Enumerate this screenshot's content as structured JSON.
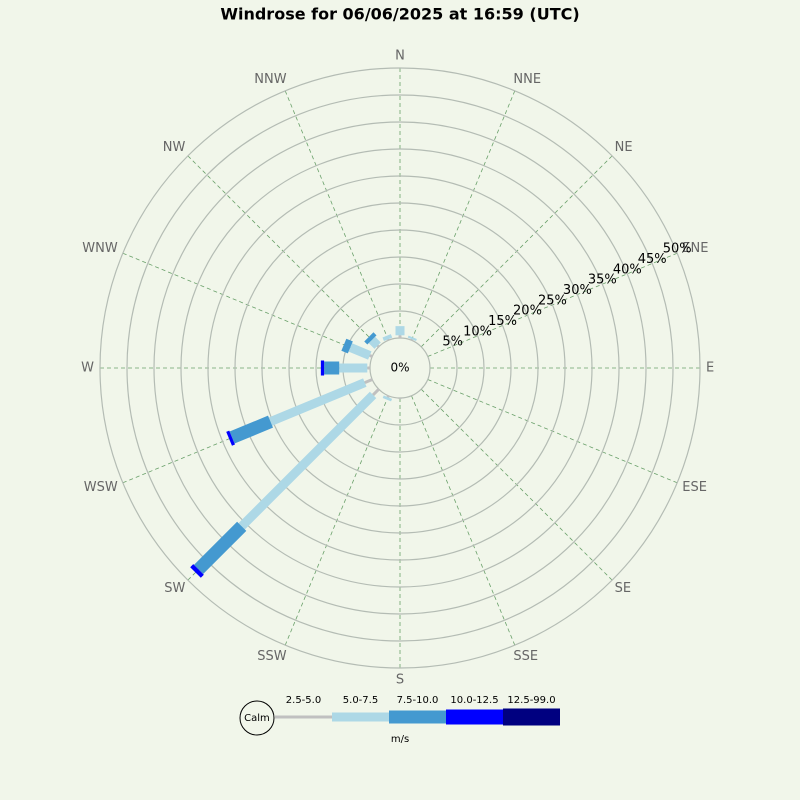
{
  "chart_data": {
    "type": "windrose",
    "title": "Windrose for 06/06/2025 at 16:59 (UTC)",
    "categories": [
      "N",
      "NNE",
      "NE",
      "ENE",
      "E",
      "ESE",
      "SE",
      "SSE",
      "S",
      "SSW",
      "SW",
      "WSW",
      "W",
      "WNW",
      "NW",
      "NNW"
    ],
    "series": [
      {
        "name": "2.5-5.0",
        "color": "#c0c0c0",
        "values": [
          0.5,
          0.2,
          0,
          0,
          0,
          0,
          0,
          0,
          0.2,
          0.3,
          1.5,
          1.5,
          0.5,
          0.5,
          0.3,
          0.2
        ]
      },
      {
        "name": "5.0-7.5",
        "color": "#add8e6",
        "values": [
          1.7,
          0.4,
          0,
          0,
          0,
          0,
          0,
          0,
          0,
          0.5,
          34.4,
          18.9,
          5.2,
          3.9,
          1.5,
          0.7
        ]
      },
      {
        "name": "7.5-10.0",
        "color": "#4499d0",
        "values": [
          0,
          0,
          0,
          0,
          0,
          0,
          0,
          0,
          0,
          0,
          11.3,
          7.7,
          2.8,
          1.3,
          0.8,
          0
        ]
      },
      {
        "name": "10.0-12.5",
        "color": "#0000ff",
        "values": [
          0,
          0,
          0,
          0,
          0,
          0,
          0,
          0,
          0,
          0,
          0.8,
          0.6,
          0.6,
          0,
          0,
          0
        ]
      },
      {
        "name": "12.5-99.0",
        "color": "#000080",
        "values": [
          0,
          0,
          0,
          0,
          0,
          0,
          0,
          0,
          0,
          0,
          0,
          0,
          0,
          0,
          0,
          0
        ]
      }
    ],
    "rlim": [
      0,
      50
    ],
    "rticks": [
      {
        "value": 0,
        "label": "0%"
      },
      {
        "value": 5,
        "label": "5%"
      },
      {
        "value": 10,
        "label": "10%"
      },
      {
        "value": 15,
        "label": "15%"
      },
      {
        "value": 20,
        "label": "20%"
      },
      {
        "value": 25,
        "label": "25%"
      },
      {
        "value": 30,
        "label": "30%"
      },
      {
        "value": 35,
        "label": "35%"
      },
      {
        "value": 40,
        "label": "40%"
      },
      {
        "value": 45,
        "label": "45%"
      },
      {
        "value": 50,
        "label": "50%"
      }
    ],
    "calm_label": "Calm",
    "legend_unit": "m/s"
  }
}
